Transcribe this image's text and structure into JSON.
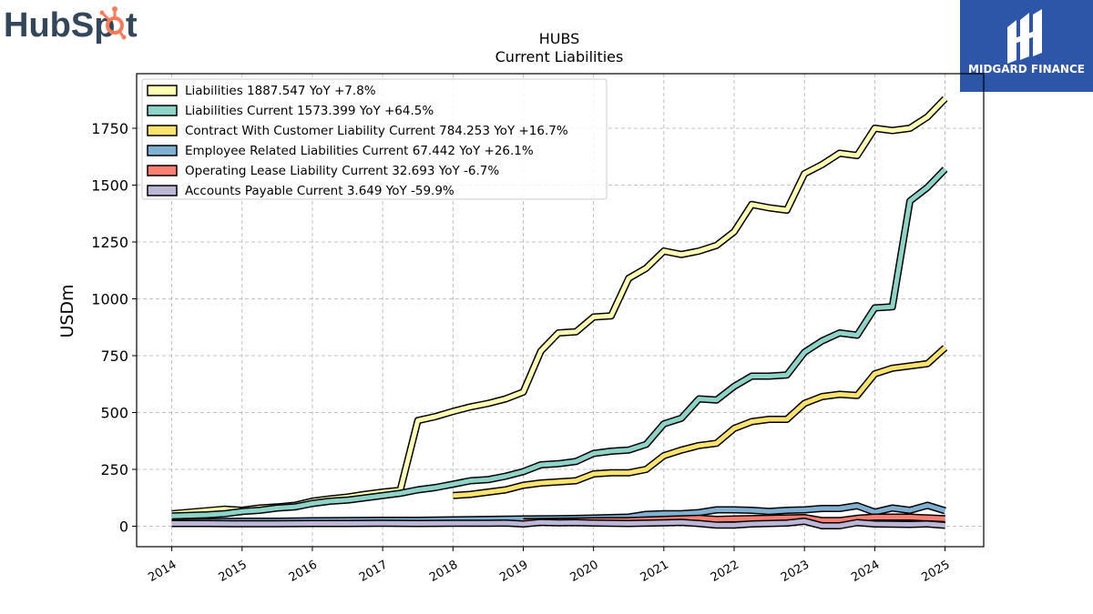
{
  "brand": {
    "left_logo_text_a": "HubSp",
    "left_logo_text_b": "t",
    "right_logo_text": "MIDGARD FINANCE",
    "left_logo_color": "#33475b",
    "left_logo_accent": "#ff7a59",
    "right_logo_bg": "#2d56a8"
  },
  "chart_data": {
    "type": "area",
    "title": "HUBS",
    "subtitle": "Current  Liabilities",
    "ylabel": "USDm",
    "xlabel": "",
    "ylim": [
      -90,
      1990
    ],
    "xlim": [
      2013.5,
      2025.55
    ],
    "yticks": [
      0,
      250,
      500,
      750,
      1000,
      1250,
      1500,
      1750
    ],
    "xticks": [
      2014,
      2015,
      2016,
      2017,
      2018,
      2019,
      2020,
      2021,
      2022,
      2023,
      2024,
      2025
    ],
    "grid": true,
    "legend_position": "top-left",
    "series": [
      {
        "name": "Liabilities",
        "legend_label": "Liabilities  1887.547 YoY +7.8%",
        "color": "#ffffb3",
        "x": [
          2014.0,
          2014.75,
          2015.0,
          2015.25,
          2015.5,
          2015.75,
          2016.0,
          2016.25,
          2016.5,
          2016.75,
          2017.0,
          2017.25,
          2017.5,
          2017.75,
          2018.0,
          2018.25,
          2018.5,
          2018.75,
          2019.0,
          2019.25,
          2019.5,
          2019.75,
          2020.0,
          2020.25,
          2020.5,
          2020.75,
          2021.0,
          2021.25,
          2021.5,
          2021.75,
          2022.0,
          2022.25,
          2022.5,
          2022.75,
          2023.0,
          2023.25,
          2023.5,
          2023.75,
          2024.0,
          2024.25,
          2024.5,
          2024.75,
          2025.0
        ],
        "values": [
          55,
          75,
          70,
          80,
          85,
          92,
          110,
          120,
          128,
          140,
          150,
          158,
          465,
          482,
          505,
          525,
          540,
          560,
          590,
          770,
          850,
          855,
          920,
          925,
          1090,
          1135,
          1210,
          1195,
          1210,
          1235,
          1295,
          1415,
          1400,
          1390,
          1550,
          1590,
          1640,
          1630,
          1750,
          1740,
          1750,
          1800,
          1880
        ]
      },
      {
        "name": "Liabilities Current",
        "legend_label": "Liabilities Current  1573.399 YoY +64.5%",
        "color": "#8dd3c7",
        "x": [
          2014.0,
          2014.5,
          2014.75,
          2015.0,
          2015.25,
          2015.5,
          2015.75,
          2016.0,
          2016.25,
          2016.5,
          2016.75,
          2017.0,
          2017.25,
          2017.5,
          2017.75,
          2018.0,
          2018.25,
          2018.5,
          2018.75,
          2019.0,
          2019.25,
          2019.5,
          2019.75,
          2020.0,
          2020.25,
          2020.5,
          2020.75,
          2021.0,
          2021.25,
          2021.5,
          2021.75,
          2022.0,
          2022.25,
          2022.5,
          2022.75,
          2023.0,
          2023.25,
          2023.5,
          2023.75,
          2024.0,
          2024.25,
          2024.5,
          2024.75,
          2025.0
        ],
        "values": [
          45,
          50,
          55,
          65,
          70,
          80,
          85,
          100,
          110,
          115,
          125,
          135,
          145,
          160,
          170,
          185,
          200,
          205,
          220,
          240,
          270,
          275,
          285,
          320,
          330,
          335,
          360,
          450,
          475,
          560,
          555,
          615,
          660,
          660,
          665,
          765,
          815,
          850,
          840,
          960,
          965,
          1430,
          1490,
          1570
        ]
      },
      {
        "name": "Contract With Customer Liability Current",
        "legend_label": "Contract With Customer Liability Current  784.253 YoY +16.7%",
        "color": "#fce36e",
        "x": [
          2018.0,
          2018.25,
          2018.5,
          2018.75,
          2019.0,
          2019.25,
          2019.5,
          2019.75,
          2020.0,
          2020.25,
          2020.5,
          2020.75,
          2021.0,
          2021.25,
          2021.5,
          2021.75,
          2022.0,
          2022.25,
          2022.5,
          2022.75,
          2023.0,
          2023.25,
          2023.5,
          2023.75,
          2024.0,
          2024.25,
          2024.5,
          2024.75,
          2025.0
        ],
        "values": [
          135,
          140,
          150,
          160,
          180,
          190,
          195,
          200,
          230,
          235,
          235,
          250,
          310,
          335,
          355,
          365,
          430,
          460,
          470,
          470,
          540,
          570,
          580,
          575,
          670,
          695,
          705,
          715,
          785
        ]
      },
      {
        "name": "Employee Related Liabilities Current",
        "legend_label": "Employee Related Liabilities Current  67.442 YoY +26.1%",
        "color": "#80b1d3",
        "x": [
          2014.0,
          2014.5,
          2015.0,
          2015.5,
          2016.0,
          2016.5,
          2017.0,
          2017.5,
          2018.0,
          2018.5,
          2019.0,
          2019.5,
          2020.0,
          2020.5,
          2020.75,
          2021.0,
          2021.25,
          2021.5,
          2021.75,
          2022.0,
          2022.25,
          2022.5,
          2022.75,
          2023.0,
          2023.25,
          2023.5,
          2023.75,
          2024.0,
          2024.25,
          2024.5,
          2024.75,
          2025.0
        ],
        "values": [
          18,
          20,
          22,
          22,
          24,
          25,
          26,
          26,
          28,
          30,
          32,
          33,
          36,
          40,
          52,
          55,
          55,
          60,
          72,
          72,
          70,
          65,
          70,
          72,
          78,
          78,
          90,
          62,
          80,
          70,
          92,
          68
        ]
      },
      {
        "name": "Operating Lease Liability Current",
        "legend_label": "Operating Lease Liability Current  32.693 YoY -6.7%",
        "color": "#fb8072",
        "x": [
          2019.0,
          2019.5,
          2020.0,
          2020.5,
          2021.0,
          2021.5,
          2021.75,
          2022.0,
          2022.5,
          2023.0,
          2023.25,
          2023.5,
          2023.75,
          2024.0,
          2024.5,
          2025.0
        ],
        "values": [
          20,
          22,
          24,
          25,
          30,
          35,
          30,
          32,
          35,
          38,
          25,
          25,
          35,
          40,
          40,
          33
        ]
      },
      {
        "name": "Accounts Payable Current",
        "legend_label": "Accounts Payable Current  3.649 YoY -59.9%",
        "color": "#bcb6d6",
        "x": [
          2014.0,
          2014.5,
          2015.0,
          2015.5,
          2016.0,
          2016.5,
          2017.0,
          2017.5,
          2018.0,
          2018.5,
          2018.75,
          2019.0,
          2019.25,
          2019.5,
          2019.75,
          2020.0,
          2020.5,
          2021.0,
          2021.25,
          2021.5,
          2021.75,
          2022.0,
          2022.25,
          2022.5,
          2022.75,
          2023.0,
          2023.25,
          2023.5,
          2023.75,
          2024.0,
          2024.5,
          2024.75,
          2025.0
        ],
        "values": [
          12,
          12,
          11,
          11,
          12,
          12,
          13,
          12,
          13,
          13,
          14,
          10,
          17,
          15,
          16,
          14,
          12,
          15,
          17,
          12,
          5,
          5,
          10,
          12,
          14,
          22,
          2,
          2,
          16,
          10,
          8,
          10,
          4
        ]
      }
    ]
  }
}
